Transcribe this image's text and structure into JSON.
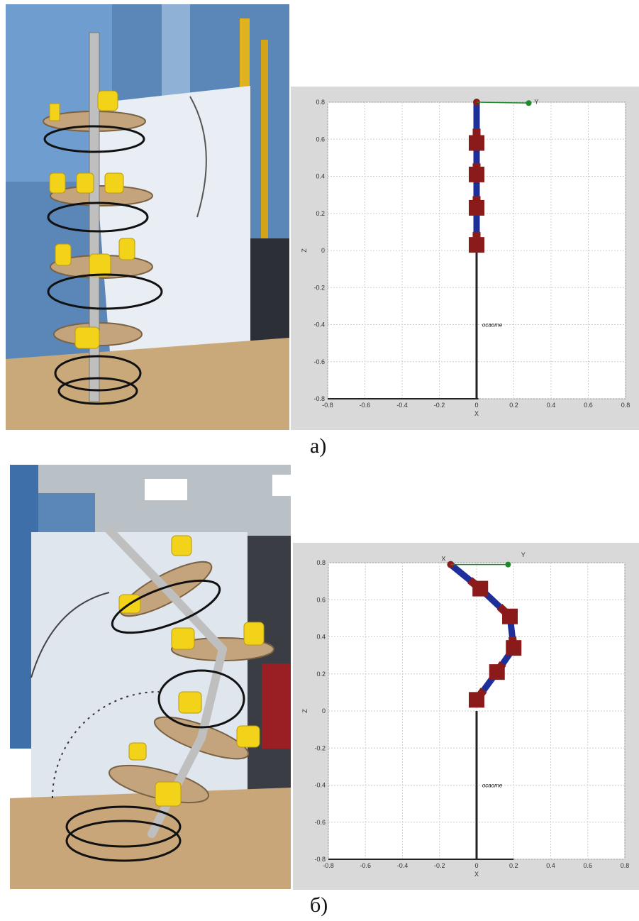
{
  "figure": {
    "panels": [
      {
        "caption": "а)",
        "plot": {
          "xlabel": "X",
          "ylabel": "Z",
          "x_ticks": [
            "-0.8",
            "-0.6",
            "-0.4",
            "-0.2",
            "0",
            "0.2",
            "0.4",
            "0.6",
            "0.8"
          ],
          "y_ticks": [
            "0.8",
            "0.6",
            "0.4",
            "0.2",
            "0",
            "-0.2",
            "-0.4",
            "-0.6",
            "-0.8"
          ],
          "annotation": "ocaome",
          "axis_label_y_top": "Y",
          "origin_label": "-0.8",
          "photo_description": ""
        }
      },
      {
        "caption": "б)",
        "plot": {
          "xlabel": "X",
          "ylabel": "Z",
          "x_ticks": [
            "-0.8",
            "-0.6",
            "-0.4",
            "-0.2",
            "0",
            "0.2",
            "0.4",
            "0.6",
            "0.8"
          ],
          "y_ticks": [
            "0.8",
            "0.6",
            "0.4",
            "0.2",
            "0",
            "-0.2",
            "-0.4",
            "-0.6",
            "-0.8"
          ],
          "annotation": "ocaome",
          "axis_label_x_top": "X",
          "axis_label_y_top": "Y",
          "origin_label": "-0.8"
        }
      }
    ]
  },
  "colors": {
    "link_red": "#8b1a1a",
    "link_blue": "#1f2f9a",
    "grid": "#cfcfcf",
    "base": "#222222",
    "green_marker": "#1f8a2a"
  }
}
